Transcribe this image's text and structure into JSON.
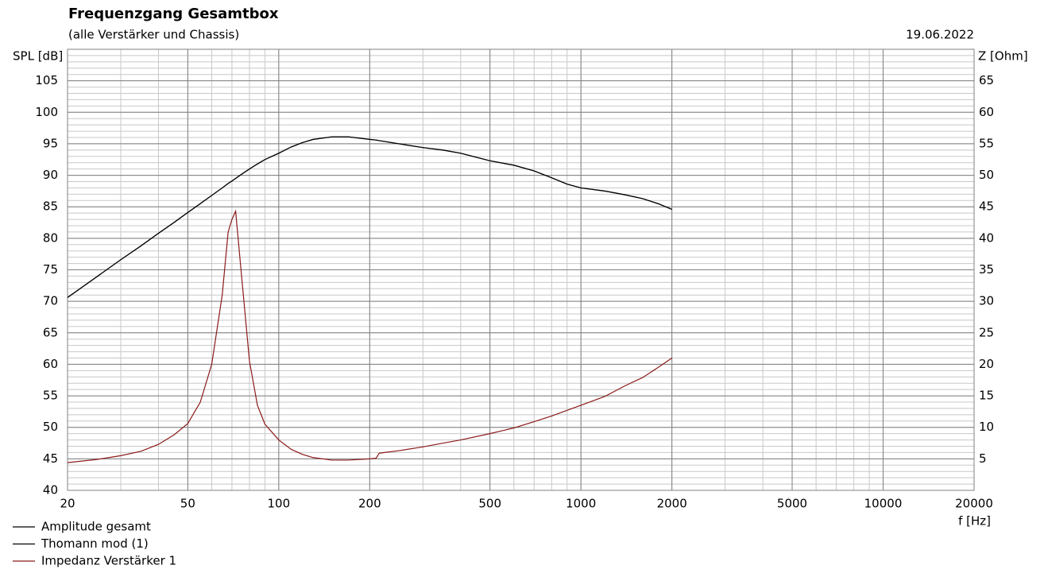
{
  "chart_data": {
    "type": "line",
    "title": "Frequenzgang Gesamtbox",
    "subtitle": "(alle Verstärker und Chassis)",
    "date": "19.06.2022",
    "ylabel": "SPL [dB]",
    "y2label": "Z [Ohm]",
    "xlabel": "f [Hz]",
    "xscale": "log",
    "xlim": [
      20,
      20000
    ],
    "xticks": [
      20,
      50,
      100,
      200,
      500,
      1000,
      2000,
      5000,
      10000,
      20000
    ],
    "ylim": [
      40,
      110
    ],
    "yticks": [
      40,
      45,
      50,
      55,
      60,
      65,
      70,
      75,
      80,
      85,
      90,
      95,
      100,
      105
    ],
    "y2lim": [
      0,
      70
    ],
    "y2ticks": [
      5,
      10,
      15,
      20,
      25,
      30,
      35,
      40,
      45,
      50,
      55,
      60,
      65
    ],
    "grid": true,
    "minor_grid": true,
    "legend": "bottom-left",
    "x": [
      20,
      25,
      30,
      35,
      40,
      45,
      50,
      55,
      60,
      65,
      68,
      70,
      72,
      75,
      80,
      85,
      90,
      100,
      110,
      120,
      130,
      150,
      170,
      200,
      210,
      215,
      250,
      300,
      350,
      400,
      500,
      600,
      700,
      800,
      900,
      1000,
      1200,
      1400,
      1600,
      1800,
      2000
    ],
    "series": [
      {
        "name": "Amplitude gesamt",
        "color": "#000000",
        "values": [
          70.6,
          73.9,
          76.6,
          78.8,
          80.8,
          82.5,
          84.1,
          85.5,
          86.8,
          88.0,
          88.7,
          89.1,
          89.5,
          90.1,
          91.0,
          91.8,
          92.5,
          93.5,
          94.5,
          95.2,
          95.7,
          96.1,
          96.1,
          95.7,
          95.6,
          95.5,
          95.0,
          94.4,
          94.0,
          93.5,
          92.3,
          91.6,
          90.7,
          89.6,
          88.6,
          88.0,
          87.5,
          86.9,
          86.3,
          85.5,
          84.6
        ]
      },
      {
        "name": "Thomann mod (1)",
        "color": "#000000",
        "values": [
          70.6,
          73.9,
          76.6,
          78.8,
          80.8,
          82.5,
          84.1,
          85.5,
          86.8,
          88.0,
          88.7,
          89.1,
          89.5,
          90.1,
          91.0,
          91.8,
          92.5,
          93.5,
          94.5,
          95.2,
          95.7,
          96.1,
          96.1,
          95.7,
          95.6,
          95.5,
          95.0,
          94.4,
          94.0,
          93.5,
          92.3,
          91.6,
          90.7,
          89.6,
          88.6,
          88.0,
          87.5,
          86.9,
          86.3,
          85.5,
          84.6
        ]
      },
      {
        "name": "Impedanz Verstärker 1",
        "color": "#8b1a1a",
        "axis": "y2",
        "values": [
          4.4,
          4.9,
          5.5,
          6.2,
          7.3,
          8.8,
          10.6,
          14,
          20,
          31,
          41,
          43,
          44.3,
          35,
          20.5,
          13.5,
          10.5,
          8,
          6.5,
          5.7,
          5.2,
          4.8,
          4.8,
          5.0,
          5.1,
          5.9,
          6.3,
          6.9,
          7.5,
          8.0,
          9.0,
          9.9,
          10.9,
          11.8,
          12.7,
          13.5,
          14.9,
          16.6,
          17.9,
          19.5,
          21.0
        ]
      }
    ]
  }
}
